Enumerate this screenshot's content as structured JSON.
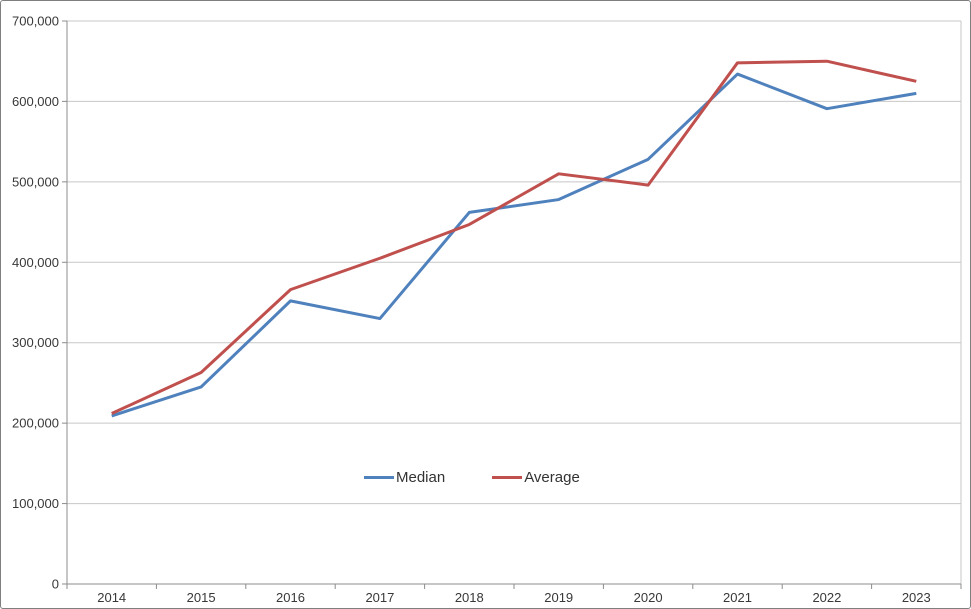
{
  "chart_data": {
    "type": "line",
    "title": "",
    "categories": [
      "2014",
      "2015",
      "2016",
      "2017",
      "2018",
      "2019",
      "2020",
      "2021",
      "2022",
      "2023"
    ],
    "series": [
      {
        "name": "Median",
        "color": "#4F81BD",
        "values": [
          209000,
          245000,
          352000,
          330000,
          462000,
          478000,
          528000,
          634000,
          591000,
          610000
        ]
      },
      {
        "name": "Average",
        "color": "#C0504D",
        "values": [
          212000,
          263000,
          366000,
          405000,
          447000,
          510000,
          496000,
          648000,
          650000,
          625000
        ]
      }
    ],
    "xlabel": "",
    "ylabel": "",
    "ylim": [
      0,
      700000
    ],
    "ytick_step": 100000,
    "ytick_labels": [
      "0",
      "100,000",
      "200,000",
      "300,000",
      "400,000",
      "500,000",
      "600,000",
      "700,000"
    ],
    "grid": "horizontal",
    "legend_position": "inside-bottom-center",
    "gridline_color": "#c7c7c7",
    "axis_color": "#8c8c8c",
    "label_color": "#383838"
  }
}
